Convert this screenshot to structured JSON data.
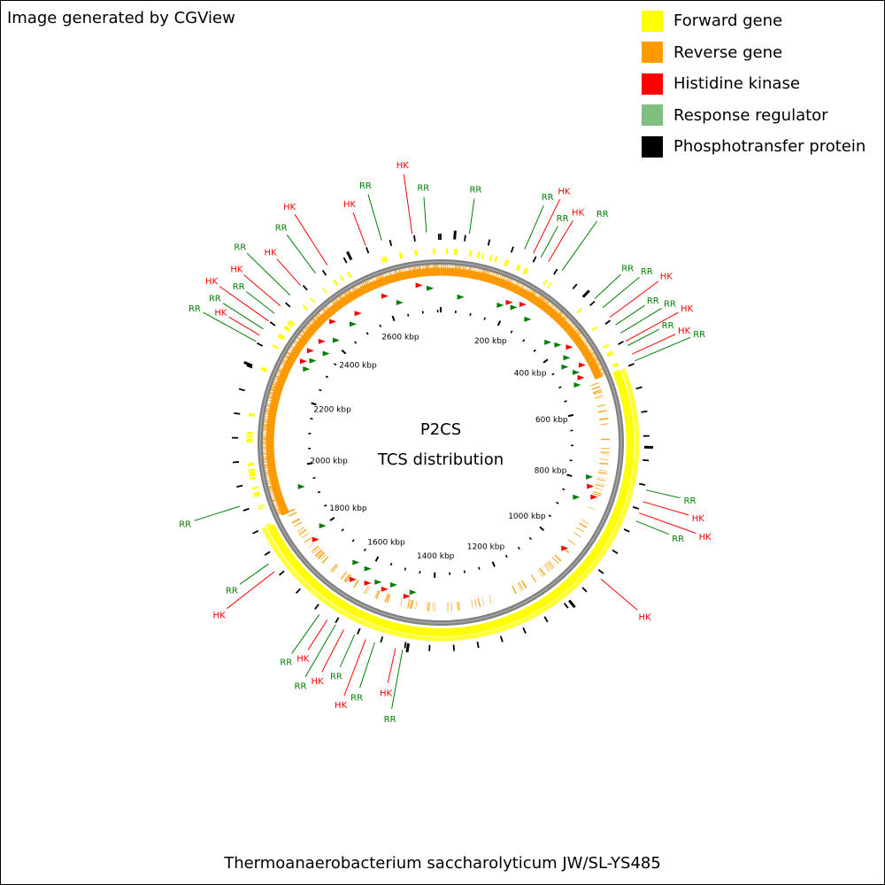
{
  "credit": "Image generated by CGView",
  "legend": [
    {
      "label": "Forward gene",
      "color": "#ffff00"
    },
    {
      "label": "Reverse gene",
      "color": "#ff9900"
    },
    {
      "label": "Histidine kinase",
      "color": "#ff0000"
    },
    {
      "label": "Response regulator",
      "color": "#7fbf7f"
    },
    {
      "label": "Phosphotransfer protein",
      "color": "#000000"
    }
  ],
  "map": {
    "center_title": "P2CS",
    "center_subtitle": "TCS distribution",
    "genome_length_kbp": 2760,
    "tick_labels": [
      "200 kbp",
      "400 kbp",
      "600 kbp",
      "800 kbp",
      "1000 kbp",
      "1200 kbp",
      "1400 kbp",
      "1600 kbp",
      "1800 kbp",
      "2000 kbp",
      "2200 kbp",
      "2400 kbp",
      "2600 kbp"
    ],
    "tcs_labels": [
      {
        "text": "RR",
        "type": "RR",
        "kbp": 60
      },
      {
        "text": "RR",
        "type": "RR",
        "kbp": 180
      },
      {
        "text": "HK",
        "type": "HK",
        "kbp": 200
      },
      {
        "text": "RR",
        "type": "RR",
        "kbp": 218
      },
      {
        "text": "HK",
        "type": "HK",
        "kbp": 236
      },
      {
        "text": "RR",
        "type": "RR",
        "kbp": 270
      },
      {
        "text": "RR",
        "type": "RR",
        "kbp": 360
      },
      {
        "text": "RR",
        "type": "RR",
        "kbp": 385
      },
      {
        "text": "HK",
        "type": "HK",
        "kbp": 410
      },
      {
        "text": "RR",
        "type": "RR",
        "kbp": 430
      },
      {
        "text": "RR",
        "type": "RR",
        "kbp": 450
      },
      {
        "text": "HK",
        "type": "HK",
        "kbp": 470
      },
      {
        "text": "RR",
        "type": "RR",
        "kbp": 480
      },
      {
        "text": "HK",
        "type": "HK",
        "kbp": 500
      },
      {
        "text": "RR",
        "type": "RR",
        "kbp": 515
      },
      {
        "text": "RR",
        "type": "RR",
        "kbp": 790
      },
      {
        "text": "HK",
        "type": "HK",
        "kbp": 815
      },
      {
        "text": "HK",
        "type": "HK",
        "kbp": 840
      },
      {
        "text": "RR",
        "type": "RR",
        "kbp": 858
      },
      {
        "text": "HK",
        "type": "HK",
        "kbp": 1000
      },
      {
        "text": "RR",
        "type": "RR",
        "kbp": 1460
      },
      {
        "text": "HK",
        "type": "HK",
        "kbp": 1475
      },
      {
        "text": "RR",
        "type": "RR",
        "kbp": 1520
      },
      {
        "text": "HK",
        "type": "HK",
        "kbp": 1540
      },
      {
        "text": "RR",
        "type": "RR",
        "kbp": 1565
      },
      {
        "text": "HK",
        "type": "HK",
        "kbp": 1590
      },
      {
        "text": "RR",
        "type": "RR",
        "kbp": 1610
      },
      {
        "text": "HK",
        "type": "HK",
        "kbp": 1630
      },
      {
        "text": "RR",
        "type": "RR",
        "kbp": 1650
      },
      {
        "text": "HK",
        "type": "HK",
        "kbp": 1780
      },
      {
        "text": "RR",
        "type": "RR",
        "kbp": 1800
      },
      {
        "text": "RR",
        "type": "RR",
        "kbp": 1935
      },
      {
        "text": "RR",
        "type": "RR",
        "kbp": 2290
      },
      {
        "text": "HK",
        "type": "HK",
        "kbp": 2305
      },
      {
        "text": "RR",
        "type": "RR",
        "kbp": 2320
      },
      {
        "text": "HK",
        "type": "HK",
        "kbp": 2340
      },
      {
        "text": "RR",
        "type": "RR",
        "kbp": 2360
      },
      {
        "text": "HK",
        "type": "HK",
        "kbp": 2380
      },
      {
        "text": "RR",
        "type": "RR",
        "kbp": 2410
      },
      {
        "text": "HK",
        "type": "HK",
        "kbp": 2440
      },
      {
        "text": "RR",
        "type": "RR",
        "kbp": 2480
      },
      {
        "text": "HK",
        "type": "HK",
        "kbp": 2510
      },
      {
        "text": "HK",
        "type": "HK",
        "kbp": 2600
      },
      {
        "text": "RR",
        "type": "RR",
        "kbp": 2635
      },
      {
        "text": "HK",
        "type": "HK",
        "kbp": 2700
      },
      {
        "text": "RR",
        "type": "RR",
        "kbp": 2730
      }
    ],
    "colors": {
      "forward": "#ffff00",
      "reverse": "#ff9900",
      "hk": "#ff0000",
      "rr": "#007f00",
      "backbone": "#808080"
    }
  },
  "organism": "Thermoanaerobacterium saccharolyticum JW/SL-YS485"
}
